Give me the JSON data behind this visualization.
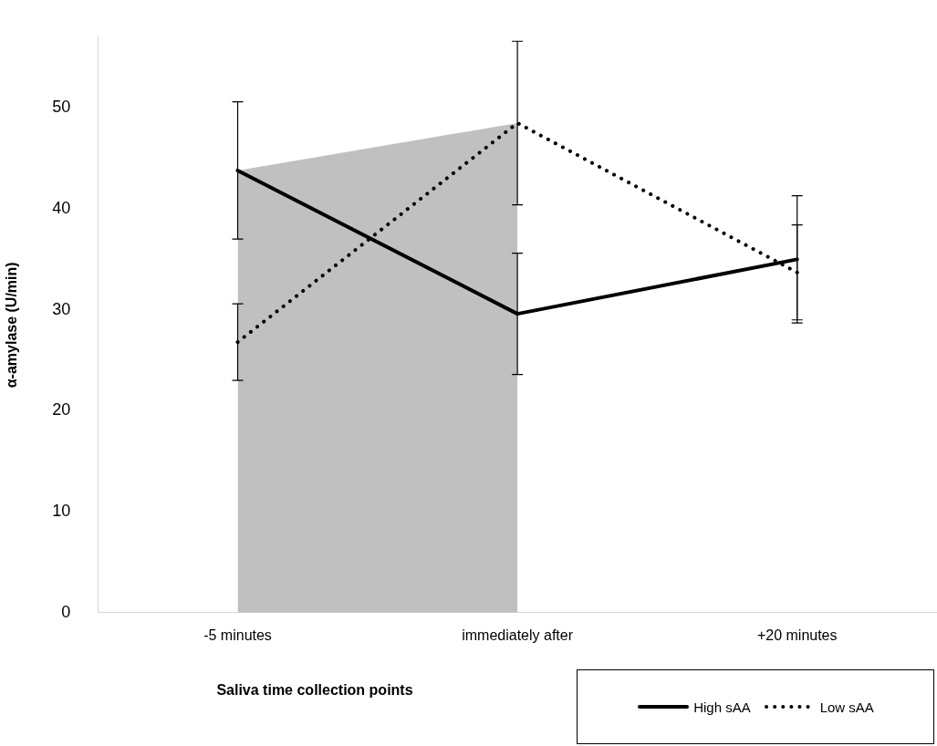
{
  "chart_data": {
    "type": "line",
    "xlabel": "Saliva time collection points",
    "ylabel": "α-amylase (U/min)",
    "categories": [
      "-5 minutes",
      "immediately after",
      "+20 minutes"
    ],
    "ylim": [
      0,
      57
    ],
    "yticks": [
      0,
      10,
      20,
      30,
      40,
      50
    ],
    "grid": false,
    "legend": "bottom right",
    "marker": "none",
    "series": [
      {
        "type": "area",
        "color": "#c0c0c0",
        "values": [
          43.8,
          48.5,
          null
        ]
      },
      {
        "name": "High sAA",
        "color": "#000000",
        "line_style": "solid",
        "values": [
          43.8,
          29.6,
          35.0
        ],
        "errors": [
          6.8,
          6.0,
          6.3
        ]
      },
      {
        "name": "Low sAA",
        "color": "#000000",
        "line_style": "dotted",
        "values": [
          26.8,
          48.5,
          33.7
        ],
        "errors": [
          3.8,
          8.1,
          4.7
        ]
      }
    ]
  }
}
